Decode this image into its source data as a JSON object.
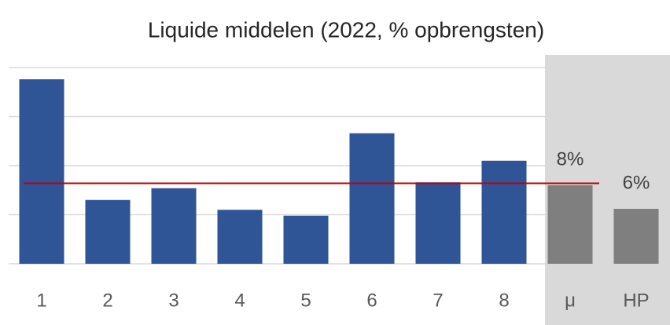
{
  "chart_data": {
    "type": "bar",
    "title": "Liquide middelen (2022, % opbrengsten)",
    "categories": [
      "1",
      "2",
      "3",
      "4",
      "5",
      "6",
      "7",
      "8",
      "μ",
      "HP"
    ],
    "values": [
      18.8,
      6.5,
      7.7,
      5.5,
      4.9,
      13.3,
      8.3,
      10.5,
      8,
      5.6
    ],
    "value_labels": [
      null,
      null,
      null,
      null,
      null,
      null,
      null,
      null,
      "8%",
      "6%"
    ],
    "colors": [
      "#2f5597",
      "#2f5597",
      "#2f5597",
      "#2f5597",
      "#2f5597",
      "#2f5597",
      "#2f5597",
      "#2f5597",
      "#7f7f7f",
      "#7f7f7f"
    ],
    "reference_line": {
      "value": 8.2,
      "color": "#c00000"
    },
    "ylim": [
      0,
      20
    ],
    "yticks": [
      0,
      5,
      10,
      15,
      20
    ],
    "grid": true
  }
}
